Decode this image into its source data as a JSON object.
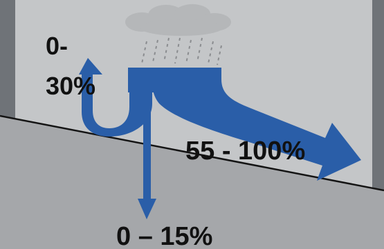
{
  "diagram": {
    "labels": {
      "evaporation": "0-\n30%",
      "runoff": "55 - 100%",
      "infiltration": "0 – 15%"
    },
    "colors": {
      "background": "#6f7378",
      "panel": "#c4c6c8",
      "ground": "#a5a7aa",
      "arrow": "#2a5ea8",
      "cloud": "#b5b7b9",
      "rain": "#8a8c8f",
      "ground_line": "#141414",
      "text": "#111111"
    },
    "icons": [
      "cloud-icon",
      "rain-icon"
    ]
  }
}
